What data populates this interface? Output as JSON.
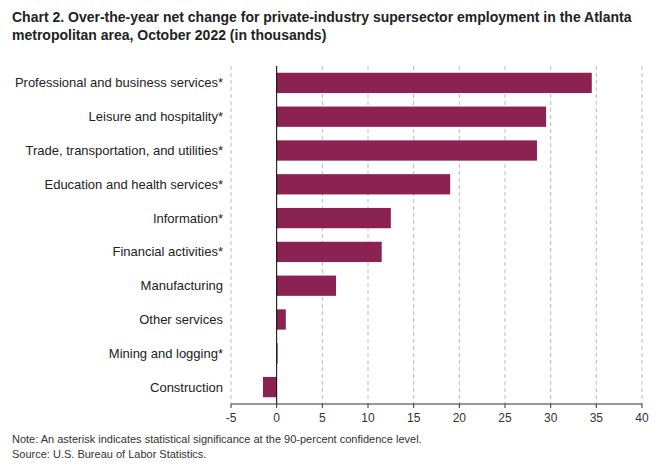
{
  "chart_data": {
    "type": "bar",
    "orientation": "horizontal",
    "title": "Chart 2. Over-the-year net change for private-industry supersector employment in the Atlanta metropolitan area, October 2022 (in thousands)",
    "categories": [
      "Construction",
      "Mining and logging*",
      "Other services",
      "Manufacturing",
      "Financial activities*",
      "Information*",
      "Education and health services*",
      "Trade, transportation, and utilities*",
      "Leisure and hospitality*",
      "Professional and business services*"
    ],
    "values": [
      -1.5,
      0.1,
      1.0,
      6.5,
      11.5,
      12.5,
      19.0,
      28.5,
      29.5,
      34.5
    ],
    "color": "#8B2252",
    "xlim": [
      -5,
      40
    ],
    "xticks": [
      -5,
      0,
      5,
      10,
      15,
      20,
      25,
      30,
      35,
      40
    ],
    "grid": true,
    "annotations": [
      "Note: An asterisk indicates statistical significance at the 90-percent confidence level.",
      "Source: U.S. Bureau of Labor Statistics."
    ]
  }
}
